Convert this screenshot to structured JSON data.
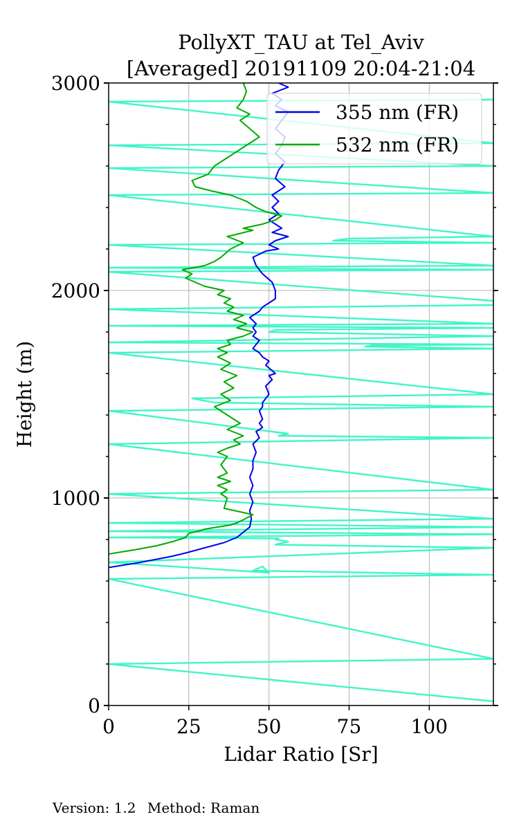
{
  "chart_data": {
    "type": "line",
    "title": [
      "PollyXT_TAU at Tel_Aviv",
      "[Averaged] 20191109 20:04-21:04"
    ],
    "xlabel": "Lidar Ratio [Sr]",
    "ylabel": "Height (m)",
    "xlim": [
      0,
      120
    ],
    "ylim": [
      0,
      3000
    ],
    "xticks": [
      0,
      25,
      50,
      75,
      100
    ],
    "yticks": [
      0,
      1000,
      2000,
      3000
    ],
    "yminor_step": 200,
    "grid": true,
    "legend_position": "top-right",
    "series": [
      {
        "name": "355 nm (FR)",
        "color": "#0000ee",
        "x": [
          0,
          10,
          20,
          24,
          30,
          36,
          40,
          42,
          44,
          44.5,
          44,
          45,
          44,
          45,
          44,
          45,
          45,
          46,
          45,
          47,
          46,
          48,
          47,
          48,
          47,
          48,
          48,
          50,
          49,
          51,
          50,
          52,
          49,
          50,
          48,
          47,
          45,
          46,
          47,
          45,
          46,
          45,
          46,
          44,
          47,
          48,
          50,
          52,
          52,
          51,
          48,
          46,
          45,
          49,
          53,
          50,
          52,
          56,
          51,
          54,
          52,
          50,
          53,
          51,
          53,
          51,
          55,
          52,
          53,
          55,
          52,
          54,
          55,
          52,
          54,
          56,
          52,
          54,
          51,
          56,
          53
        ],
        "y": [
          665,
          690,
          720,
          735,
          760,
          785,
          810,
          835,
          860,
          900,
          940,
          980,
          1020,
          1060,
          1100,
          1140,
          1180,
          1220,
          1260,
          1290,
          1320,
          1340,
          1360,
          1380,
          1420,
          1440,
          1460,
          1500,
          1540,
          1570,
          1590,
          1600,
          1640,
          1660,
          1680,
          1700,
          1720,
          1740,
          1760,
          1780,
          1800,
          1820,
          1840,
          1870,
          1900,
          1920,
          1940,
          1960,
          2000,
          2040,
          2080,
          2120,
          2160,
          2190,
          2200,
          2220,
          2240,
          2260,
          2280,
          2300,
          2320,
          2340,
          2370,
          2400,
          2430,
          2460,
          2500,
          2540,
          2580,
          2620,
          2660,
          2700,
          2740,
          2780,
          2820,
          2860,
          2890,
          2920,
          2950,
          2980,
          3000
        ]
      },
      {
        "name": "532 nm (FR)",
        "color": "#00aa00",
        "x": [
          0,
          8,
          15,
          20,
          24,
          25,
          28,
          30,
          34,
          38,
          40,
          42,
          45,
          36,
          37,
          35,
          37,
          34,
          38,
          34,
          37,
          35,
          37,
          34,
          37,
          41,
          39,
          42,
          37,
          41,
          37,
          33,
          38,
          35,
          39,
          36,
          40,
          35,
          38,
          34,
          37,
          34,
          38,
          37,
          42,
          45,
          40,
          43,
          39,
          42,
          37,
          39,
          36,
          38,
          34,
          36,
          30,
          27,
          24,
          26,
          23,
          30,
          33,
          35,
          38,
          42,
          37,
          45,
          42,
          48,
          52,
          54,
          49,
          46,
          43,
          38,
          32,
          27,
          26,
          31,
          33,
          38,
          43,
          47,
          44,
          41,
          44,
          40,
          42,
          43,
          42
        ],
        "y": [
          730,
          750,
          770,
          790,
          810,
          830,
          840,
          850,
          860,
          870,
          880,
          895,
          920,
          950,
          1000,
          1020,
          1040,
          1060,
          1080,
          1100,
          1120,
          1160,
          1200,
          1220,
          1240,
          1260,
          1280,
          1300,
          1330,
          1360,
          1400,
          1440,
          1470,
          1500,
          1530,
          1560,
          1590,
          1620,
          1650,
          1680,
          1700,
          1720,
          1740,
          1760,
          1780,
          1800,
          1820,
          1840,
          1860,
          1880,
          1900,
          1920,
          1940,
          1960,
          1980,
          2000,
          2020,
          2040,
          2060,
          2080,
          2100,
          2120,
          2140,
          2160,
          2200,
          2230,
          2260,
          2290,
          2300,
          2320,
          2340,
          2360,
          2380,
          2400,
          2430,
          2460,
          2480,
          2500,
          2530,
          2560,
          2600,
          2650,
          2700,
          2740,
          2780,
          2820,
          2850,
          2880,
          2920,
          2960,
          3000
        ]
      },
      {
        "name": "",
        "color": "#40f5c8",
        "description_role": "noise",
        "x": [
          120,
          0,
          120,
          0,
          120,
          45,
          48,
          50,
          0,
          120,
          52,
          56,
          52,
          53,
          0,
          120,
          0,
          120,
          0,
          120,
          0,
          120,
          0,
          120,
          53,
          56,
          0,
          120,
          33,
          26,
          120,
          0,
          120,
          80,
          82,
          120,
          0,
          120,
          50,
          52,
          120,
          0,
          120,
          0,
          120,
          120,
          0,
          120,
          0,
          120,
          0,
          120,
          70,
          75,
          120,
          0,
          120,
          0,
          120,
          0,
          120,
          0,
          120
        ],
        "y": [
          20,
          200,
          225,
          610,
          630,
          650,
          670,
          640,
          690,
          760,
          775,
          790,
          800,
          805,
          810,
          825,
          840,
          860,
          880,
          900,
          1020,
          1040,
          1260,
          1290,
          1300,
          1310,
          1420,
          1440,
          1460,
          1480,
          1500,
          1700,
          1720,
          1730,
          1735,
          1740,
          1750,
          1780,
          1800,
          1810,
          1820,
          1830,
          1840,
          1910,
          1930,
          1950,
          2090,
          2100,
          2110,
          2120,
          2220,
          2230,
          2240,
          2250,
          2260,
          2460,
          2470,
          2590,
          2600,
          2700,
          2710,
          2910,
          2920
        ]
      }
    ]
  },
  "footer": {
    "version": "Version: 1.2",
    "method": "Method: Raman"
  }
}
